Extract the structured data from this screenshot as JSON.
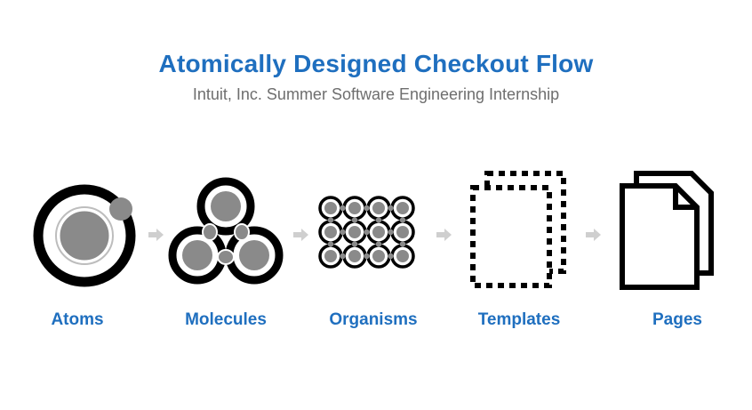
{
  "header": {
    "title": "Atomically Designed Checkout Flow",
    "subtitle": "Intuit, Inc. Summer Software Engineering Internship"
  },
  "stages": [
    {
      "label": "Atoms",
      "icon": "atom-icon"
    },
    {
      "label": "Molecules",
      "icon": "molecule-icon"
    },
    {
      "label": "Organisms",
      "icon": "organism-icon"
    },
    {
      "label": "Templates",
      "icon": "template-icon"
    },
    {
      "label": "Pages",
      "icon": "pages-icon"
    }
  ],
  "colors": {
    "accent": "#1f6fbf",
    "subtitle": "#6e6e6e",
    "icon_dark": "#000000",
    "icon_fill": "#8a8a8a",
    "arrow": "#cfcfcf"
  }
}
